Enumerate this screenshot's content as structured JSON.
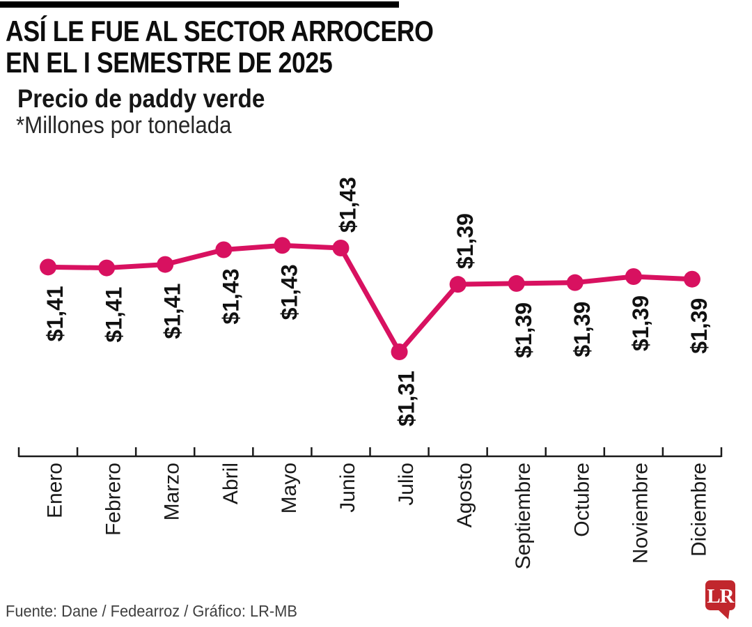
{
  "header": {
    "title_lines": [
      "ASÍ LE FUE AL SECTOR ARROCERO",
      "EN EL I SEMESTRE DE 2025"
    ],
    "subtitle": "Precio de paddy verde",
    "unit_note": "*Millones por tonelada"
  },
  "chart_data": {
    "type": "line",
    "title": "Precio de paddy verde",
    "ylabel": "*Millones por tonelada",
    "categories": [
      "Enero",
      "Febrero",
      "Marzo",
      "Abril",
      "Mayo",
      "Junio",
      "Julio",
      "Agosto",
      "Septiembre",
      "Octubre",
      "Noviembre",
      "Diciembre"
    ],
    "values": [
      1.41,
      1.41,
      1.41,
      1.43,
      1.43,
      1.43,
      1.31,
      1.39,
      1.39,
      1.39,
      1.39,
      1.39
    ],
    "point_labels": [
      "$1,41",
      "$1,41",
      "$1,41",
      "$1,43",
      "$1,43",
      "$1,43",
      "$1,31",
      "$1,39",
      "$1,39",
      "$1,39",
      "$1,39",
      "$1,39"
    ],
    "label_side": [
      "below",
      "below",
      "below",
      "below",
      "below",
      "above",
      "below",
      "above",
      "below",
      "below",
      "below",
      "below"
    ],
    "plot_values": [
      1.408,
      1.407,
      1.411,
      1.428,
      1.433,
      1.43,
      1.31,
      1.388,
      1.389,
      1.39,
      1.397,
      1.394
    ],
    "ylim": [
      1.29,
      1.46
    ],
    "grid": false,
    "legend": "none",
    "line_color": "#D81160",
    "axis_color": "#1a1a1a",
    "label_color": "#111111"
  },
  "footer": {
    "source": "Fuente:  Dane / Fedearroz / Gráfico: LR-MB"
  },
  "logo": {
    "text": "LR",
    "color": "#C1272D"
  }
}
